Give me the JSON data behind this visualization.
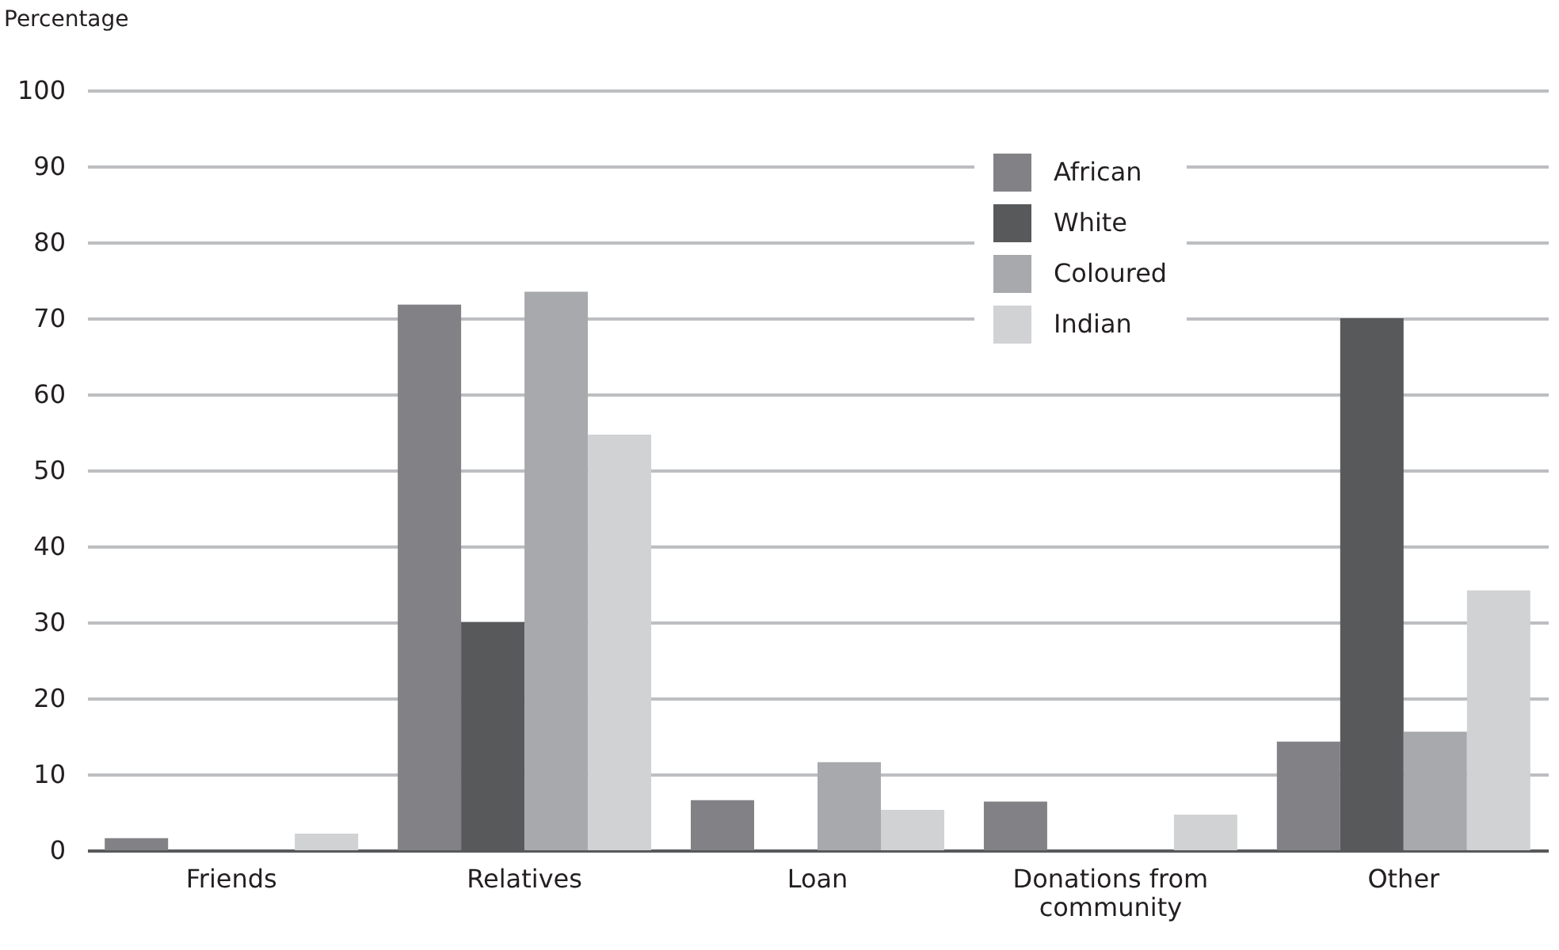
{
  "chart_data": {
    "type": "bar",
    "ylabel": "Percentage",
    "categories": [
      "Friends",
      "Relatives",
      "Loan",
      "Donations from community",
      "Other"
    ],
    "series": [
      {
        "name": "African",
        "color": "#828286",
        "values": [
          1.6,
          71.8,
          6.6,
          6.4,
          14.3
        ]
      },
      {
        "name": "White",
        "color": "#58595b",
        "values": [
          0,
          30,
          0,
          0,
          70
        ]
      },
      {
        "name": "Coloured",
        "color": "#a8a9ac",
        "values": [
          0,
          73.5,
          11.6,
          0,
          15.6
        ]
      },
      {
        "name": "Indian",
        "color": "#d1d2d4",
        "values": [
          2.2,
          54.7,
          5.3,
          4.7,
          34.2
        ]
      }
    ],
    "ylim": [
      0,
      100
    ],
    "yticks": [
      0,
      10,
      20,
      30,
      40,
      50,
      60,
      70,
      80,
      90,
      100
    ],
    "grid": "y",
    "legend": "top right"
  }
}
